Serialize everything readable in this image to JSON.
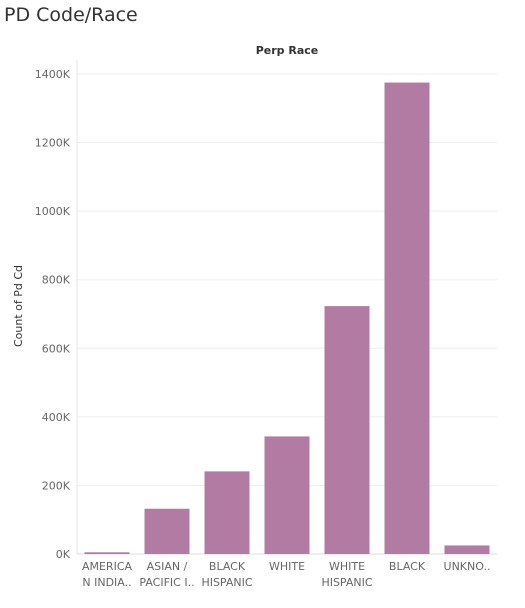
{
  "page": {
    "title": "PD Code/Race"
  },
  "chart_data": {
    "type": "bar",
    "header": "Perp Race",
    "ylabel": "Count of Pd Cd",
    "xlabel": "",
    "categories": [
      "AMERICAN INDIAN...",
      "ASIAN / PACIFIC ISLANDER",
      "BLACK HISPANIC",
      "WHITE",
      "WHITE HISPANIC",
      "BLACK",
      "UNKNOWN"
    ],
    "category_labels": [
      [
        "AMERICA",
        "N INDIA.."
      ],
      [
        "ASIAN /",
        "PACIFIC I.."
      ],
      [
        "BLACK",
        "HISPANIC"
      ],
      [
        "WHITE"
      ],
      [
        "WHITE",
        "HISPANIC"
      ],
      [
        "BLACK"
      ],
      [
        "UNKNO.."
      ]
    ],
    "values": [
      5000,
      132000,
      241000,
      343000,
      723000,
      1375000,
      25000
    ],
    "ylim": [
      0,
      1400000
    ],
    "yticks": [
      0,
      200000,
      400000,
      600000,
      800000,
      1000000,
      1200000,
      1400000
    ],
    "ytick_labels": [
      "0K",
      "200K",
      "400K",
      "600K",
      "800K",
      "1000K",
      "1200K",
      "1400K"
    ],
    "grid": true,
    "bar_color": "#b27ba3"
  }
}
